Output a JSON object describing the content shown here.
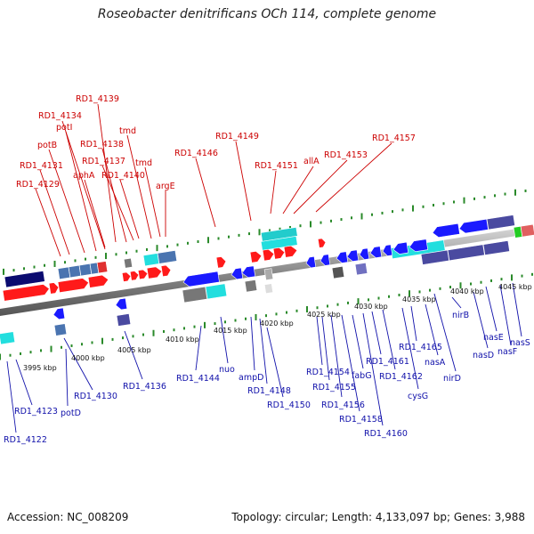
{
  "header": {
    "title": "Roseobacter denitrificans OCh 114, complete genome"
  },
  "footer": {
    "accession": "Accession: NC_008209",
    "summary": "Topology: circular; Length: 4,133,097 bp; Genes: 3,988"
  },
  "colors": {
    "forward_gene": "#ff1a1a",
    "reverse_gene": "#1a1aff",
    "forward_label": "#cc0000",
    "reverse_label": "#1010aa",
    "tick": "#2a8a2a",
    "backbone": "#8c8c8c"
  },
  "kbp_ticks": [
    "3995 kbp",
    "4000 kbp",
    "4005 kbp",
    "4010 kbp",
    "4015 kbp",
    "4020 kbp",
    "4025 kbp",
    "4030 kbp",
    "4035 kbp",
    "4040 kbp",
    "4045 kbp"
  ],
  "top_labels": [
    "RD1_4139",
    "RD1_4134",
    "potI",
    "potB",
    "RD1_4131",
    "RD1_4129",
    "aphA",
    "RD1_4138",
    "RD1_4137",
    "RD1_4140",
    "tmd",
    "tmd",
    "argE",
    "RD1_4146",
    "RD1_4149",
    "RD1_4151",
    "allA",
    "RD1_4153",
    "RD1_4157"
  ],
  "bottom_labels": [
    "RD1_4122",
    "RD1_4123",
    "potD",
    "RD1_4130",
    "RD1_4136",
    "RD1_4144",
    "nuo",
    "ampD",
    "RD1_4148",
    "RD1_4150",
    "RD1_4154",
    "RD1_4155",
    "RD1_4156",
    "RD1_4158",
    "fabG",
    "RD1_4160",
    "RD1_4161",
    "RD1_4162",
    "cysG",
    "RD1_4165",
    "nasA",
    "nirD",
    "nirB",
    "nasD",
    "nasE",
    "nasF",
    "nasS"
  ]
}
